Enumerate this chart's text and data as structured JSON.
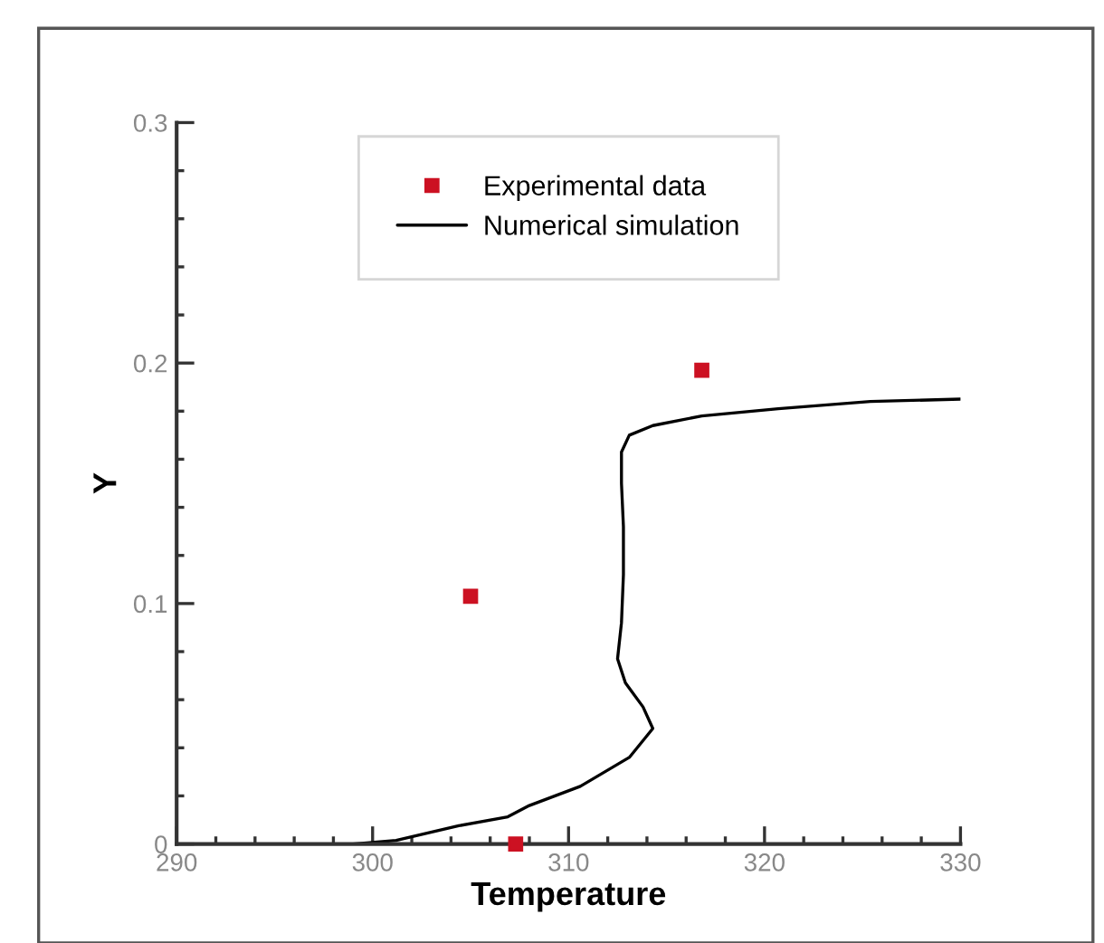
{
  "chart_data": {
    "type": "line",
    "xlabel": "Temperature",
    "ylabel": "Y",
    "xlim": [
      290,
      330
    ],
    "ylim": [
      0,
      0.3
    ],
    "xticks": [
      290,
      300,
      310,
      320,
      330
    ],
    "yticks": [
      0,
      0.1,
      0.2,
      0.3
    ],
    "grid": false,
    "legend": "top",
    "series": [
      {
        "name": "Experimental data",
        "type": "scatter",
        "color": "#cc1122",
        "marker": "square",
        "x": [
          305.0,
          307.3,
          316.8
        ],
        "values": [
          0.103,
          0.0,
          0.197
        ]
      },
      {
        "name": "Numerical simulation",
        "color": "#000000",
        "marker": "none",
        "line_style": "solid",
        "x": [
          299,
          301.2,
          304.4,
          306.9,
          308.0,
          310.6,
          313.1,
          314.3,
          313.8,
          312.9,
          312.5,
          312.7,
          312.8,
          312.8,
          312.7,
          312.7,
          313.1,
          314.3,
          316.8,
          320.7,
          325.4,
          330
        ],
        "values": [
          0,
          0.0015,
          0.0076,
          0.0113,
          0.016,
          0.024,
          0.036,
          0.048,
          0.057,
          0.067,
          0.077,
          0.092,
          0.112,
          0.132,
          0.15,
          0.163,
          0.17,
          0.174,
          0.178,
          0.181,
          0.184,
          0.185
        ]
      }
    ]
  }
}
